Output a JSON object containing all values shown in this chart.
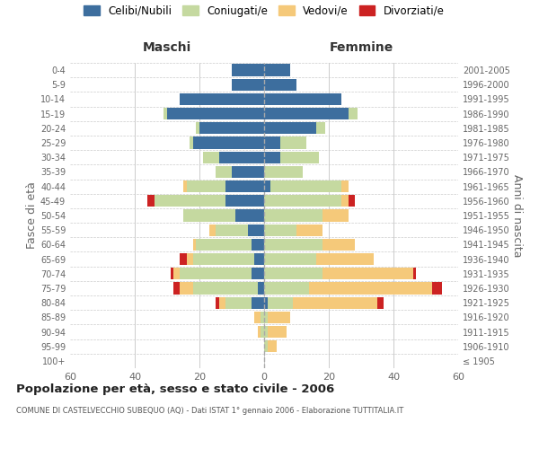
{
  "age_groups": [
    "100+",
    "95-99",
    "90-94",
    "85-89",
    "80-84",
    "75-79",
    "70-74",
    "65-69",
    "60-64",
    "55-59",
    "50-54",
    "45-49",
    "40-44",
    "35-39",
    "30-34",
    "25-29",
    "20-24",
    "15-19",
    "10-14",
    "5-9",
    "0-4"
  ],
  "birth_years": [
    "≤ 1905",
    "1906-1910",
    "1911-1915",
    "1916-1920",
    "1921-1925",
    "1926-1930",
    "1931-1935",
    "1936-1940",
    "1941-1945",
    "1946-1950",
    "1951-1955",
    "1956-1960",
    "1961-1965",
    "1966-1970",
    "1971-1975",
    "1976-1980",
    "1981-1985",
    "1986-1990",
    "1991-1995",
    "1996-2000",
    "2001-2005"
  ],
  "colors": {
    "celibe": "#3d6e9e",
    "coniugato": "#c5d9a0",
    "vedovo": "#f5c97a",
    "divorziato": "#cc2222"
  },
  "maschi": {
    "celibe": [
      0,
      0,
      0,
      0,
      4,
      2,
      4,
      3,
      4,
      5,
      9,
      12,
      12,
      10,
      14,
      22,
      20,
      30,
      26,
      10,
      10
    ],
    "coniugato": [
      0,
      0,
      1,
      1,
      8,
      20,
      22,
      19,
      17,
      10,
      16,
      22,
      12,
      5,
      5,
      1,
      1,
      1,
      0,
      0,
      0
    ],
    "vedovo": [
      0,
      0,
      1,
      2,
      2,
      4,
      2,
      2,
      1,
      2,
      0,
      0,
      1,
      0,
      0,
      0,
      0,
      0,
      0,
      0,
      0
    ],
    "divorziato": [
      0,
      0,
      0,
      0,
      1,
      2,
      1,
      2,
      0,
      0,
      0,
      2,
      0,
      0,
      0,
      0,
      0,
      0,
      0,
      0,
      0
    ]
  },
  "femmine": {
    "nubile": [
      0,
      0,
      0,
      0,
      1,
      0,
      0,
      0,
      0,
      0,
      0,
      0,
      2,
      0,
      5,
      5,
      16,
      26,
      24,
      10,
      8
    ],
    "coniugata": [
      0,
      1,
      1,
      1,
      8,
      14,
      18,
      16,
      18,
      10,
      18,
      24,
      22,
      12,
      12,
      8,
      3,
      3,
      0,
      0,
      0
    ],
    "vedova": [
      0,
      3,
      6,
      7,
      26,
      38,
      28,
      18,
      10,
      8,
      8,
      2,
      2,
      0,
      0,
      0,
      0,
      0,
      0,
      0,
      0
    ],
    "divorziata": [
      0,
      0,
      0,
      0,
      2,
      3,
      1,
      0,
      0,
      0,
      0,
      2,
      0,
      0,
      0,
      0,
      0,
      0,
      0,
      0,
      0
    ]
  },
  "title": "Popolazione per età, sesso e stato civile - 2006",
  "subtitle": "COMUNE DI CASTELVECCHIO SUBEQUO (AQ) - Dati ISTAT 1° gennaio 2006 - Elaborazione TUTTITALIA.IT",
  "xlabel_left": "Maschi",
  "xlabel_right": "Femmine",
  "ylabel_left": "Fasce di età",
  "ylabel_right": "Anni di nascita",
  "xlim": 60,
  "background_color": "#ffffff",
  "grid_color": "#cccccc"
}
